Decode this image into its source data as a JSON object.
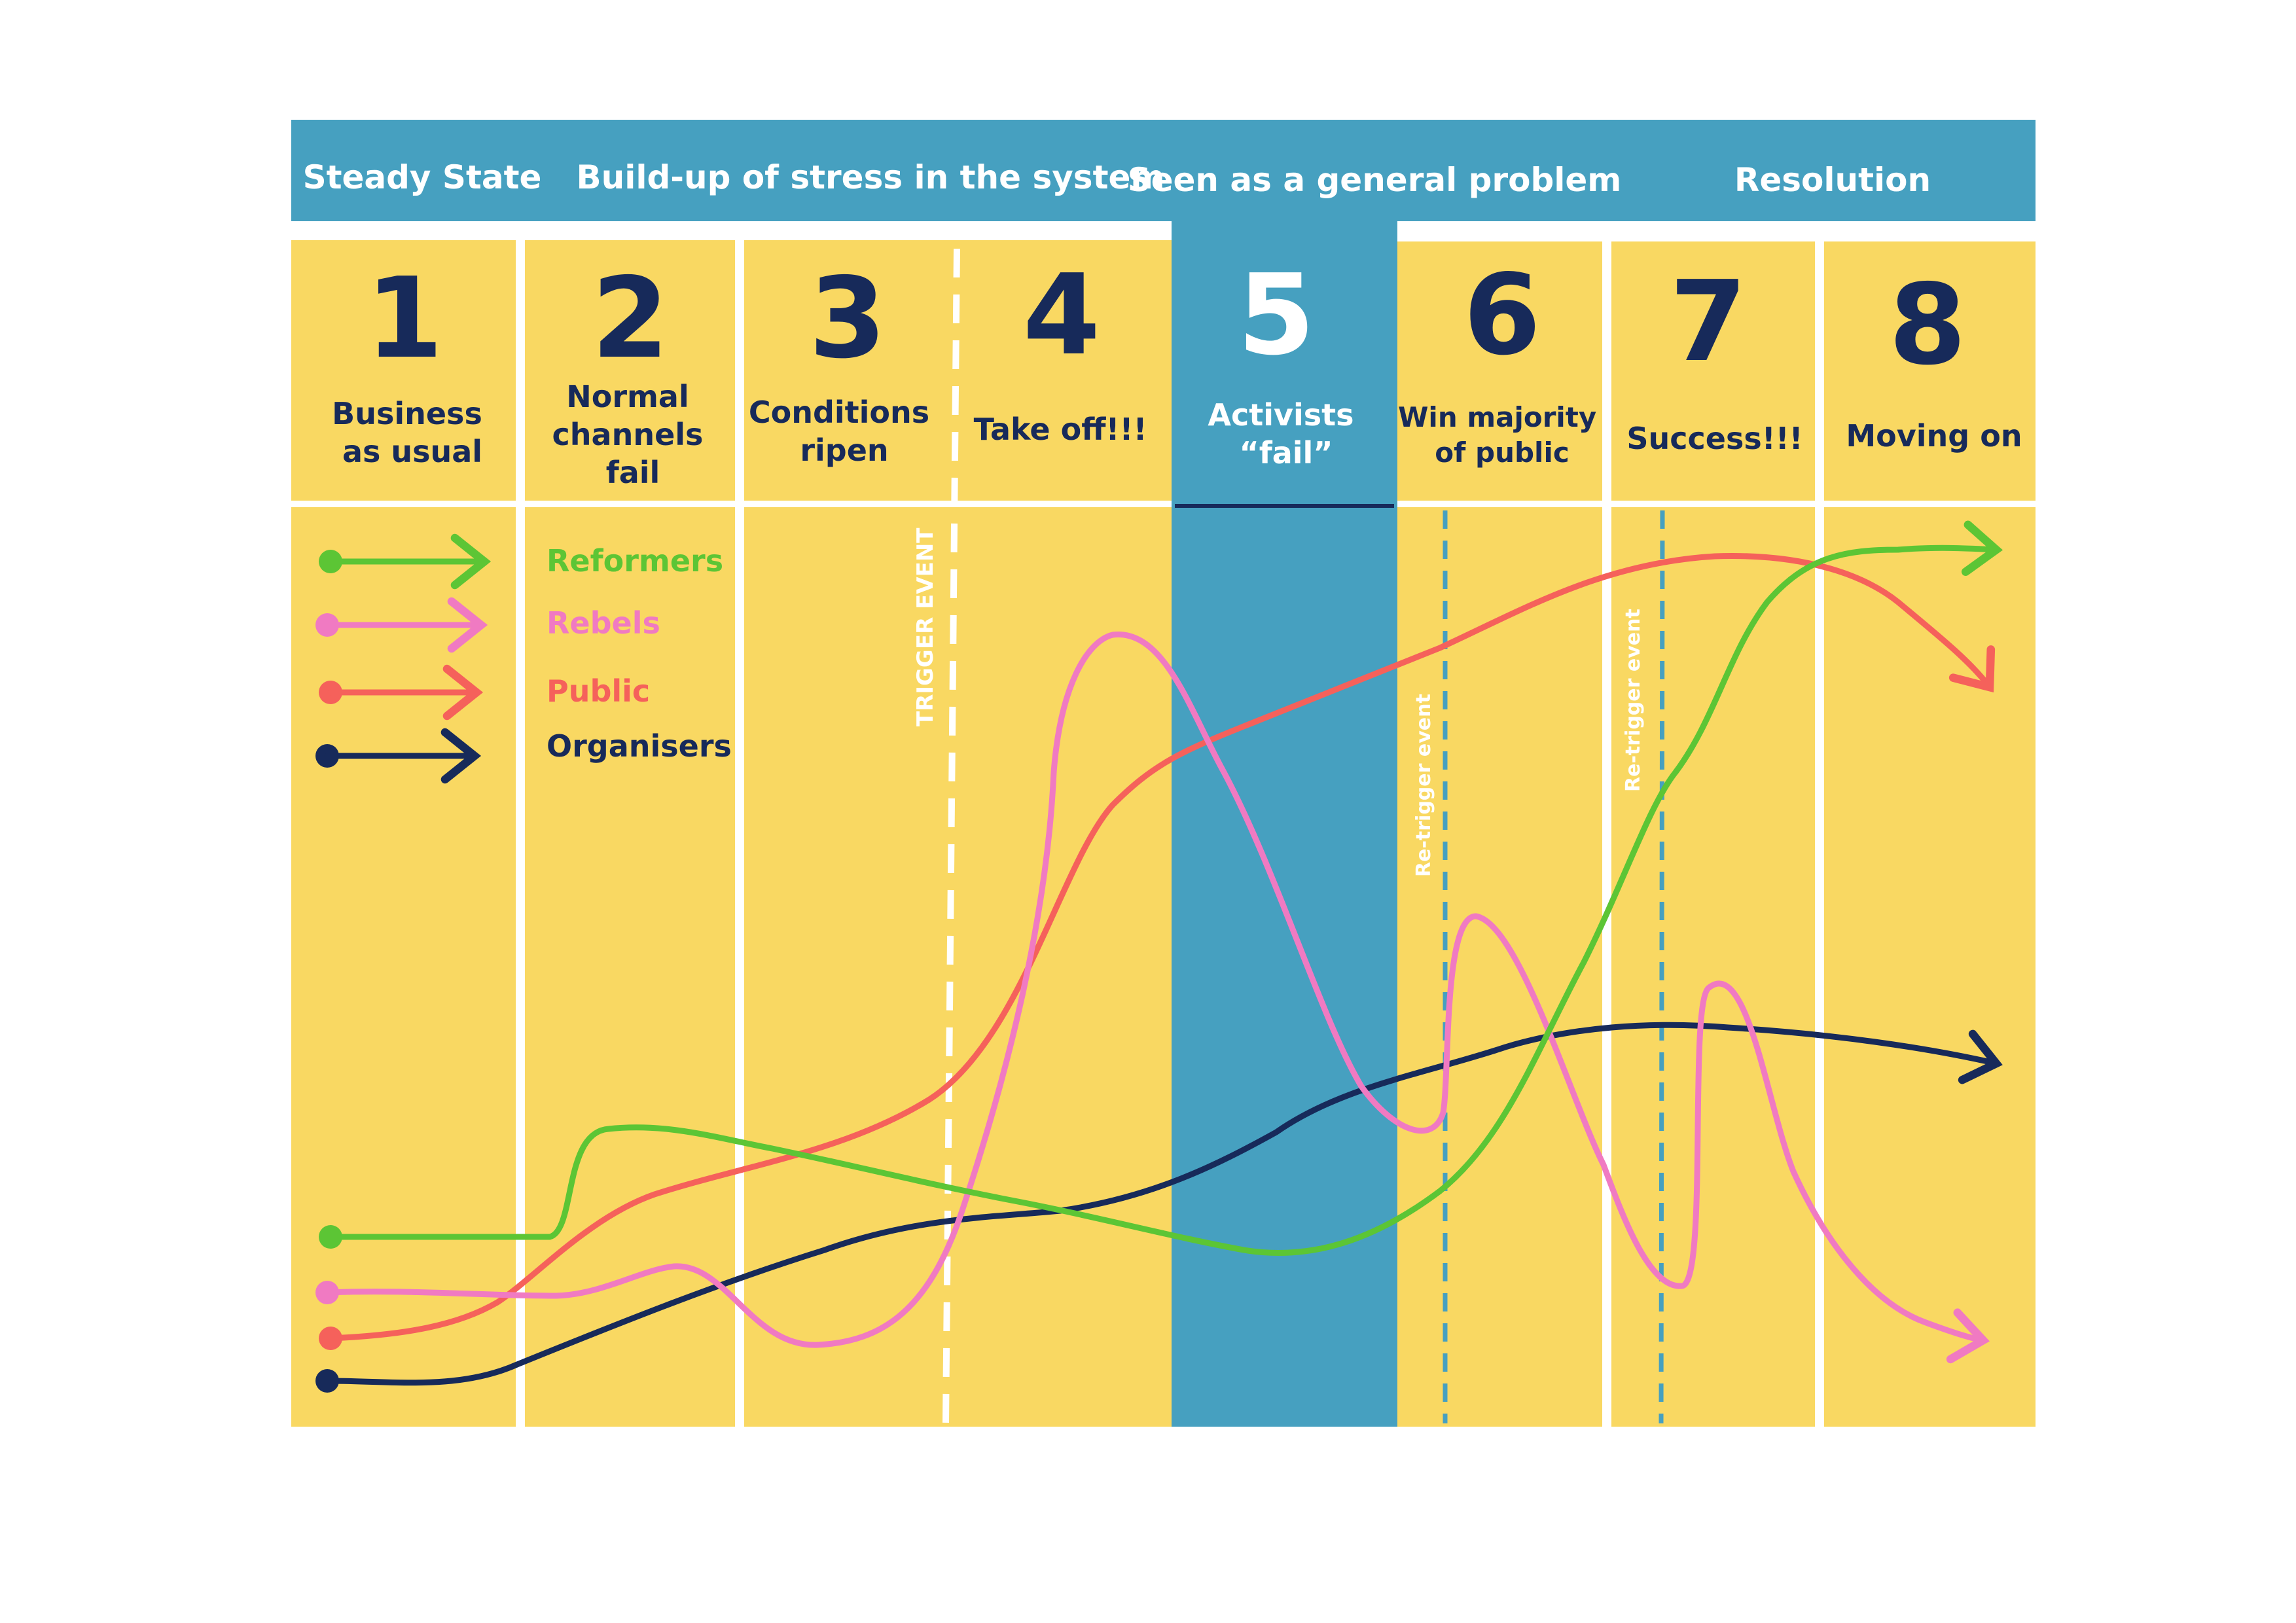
{
  "phases": [
    {
      "label": "Steady State"
    },
    {
      "label": "Build-up of stress in the system"
    },
    {
      "label": "Seen as a general problem"
    },
    {
      "label": "Resolution"
    }
  ],
  "stages": [
    {
      "number": "1",
      "title": [
        "Business",
        "as usual"
      ]
    },
    {
      "number": "2",
      "title": [
        "Normal",
        "channels",
        "fail"
      ]
    },
    {
      "number": "3",
      "title": [
        "Conditions",
        "ripen"
      ]
    },
    {
      "number": "4",
      "title": [
        "Take off!!!"
      ]
    },
    {
      "number": "5",
      "title": [
        "Activists",
        "“fail”"
      ]
    },
    {
      "number": "6",
      "title": [
        "Win majority",
        "of public"
      ]
    },
    {
      "number": "7",
      "title": [
        "Success!!!"
      ]
    },
    {
      "number": "8",
      "title": [
        "Moving on"
      ]
    }
  ],
  "events": {
    "trigger": "TRIGGER EVENT",
    "retrigger_1": "Re-trigger event",
    "retrigger_2": "Re-trigger event"
  },
  "legend": [
    {
      "key": "reformers",
      "label": "Reformers",
      "color": "#5cc535"
    },
    {
      "key": "rebels",
      "label": "Rebels",
      "color": "#f07ac2"
    },
    {
      "key": "public",
      "label": "Public",
      "color": "#f5615b"
    },
    {
      "key": "organisers",
      "label": "Organisers",
      "color": "#172a5a"
    }
  ],
  "colors": {
    "panel": "#f9d862",
    "band": "#46a0c0",
    "divider": "#ffffff",
    "text_dark": "#172a5a"
  }
}
